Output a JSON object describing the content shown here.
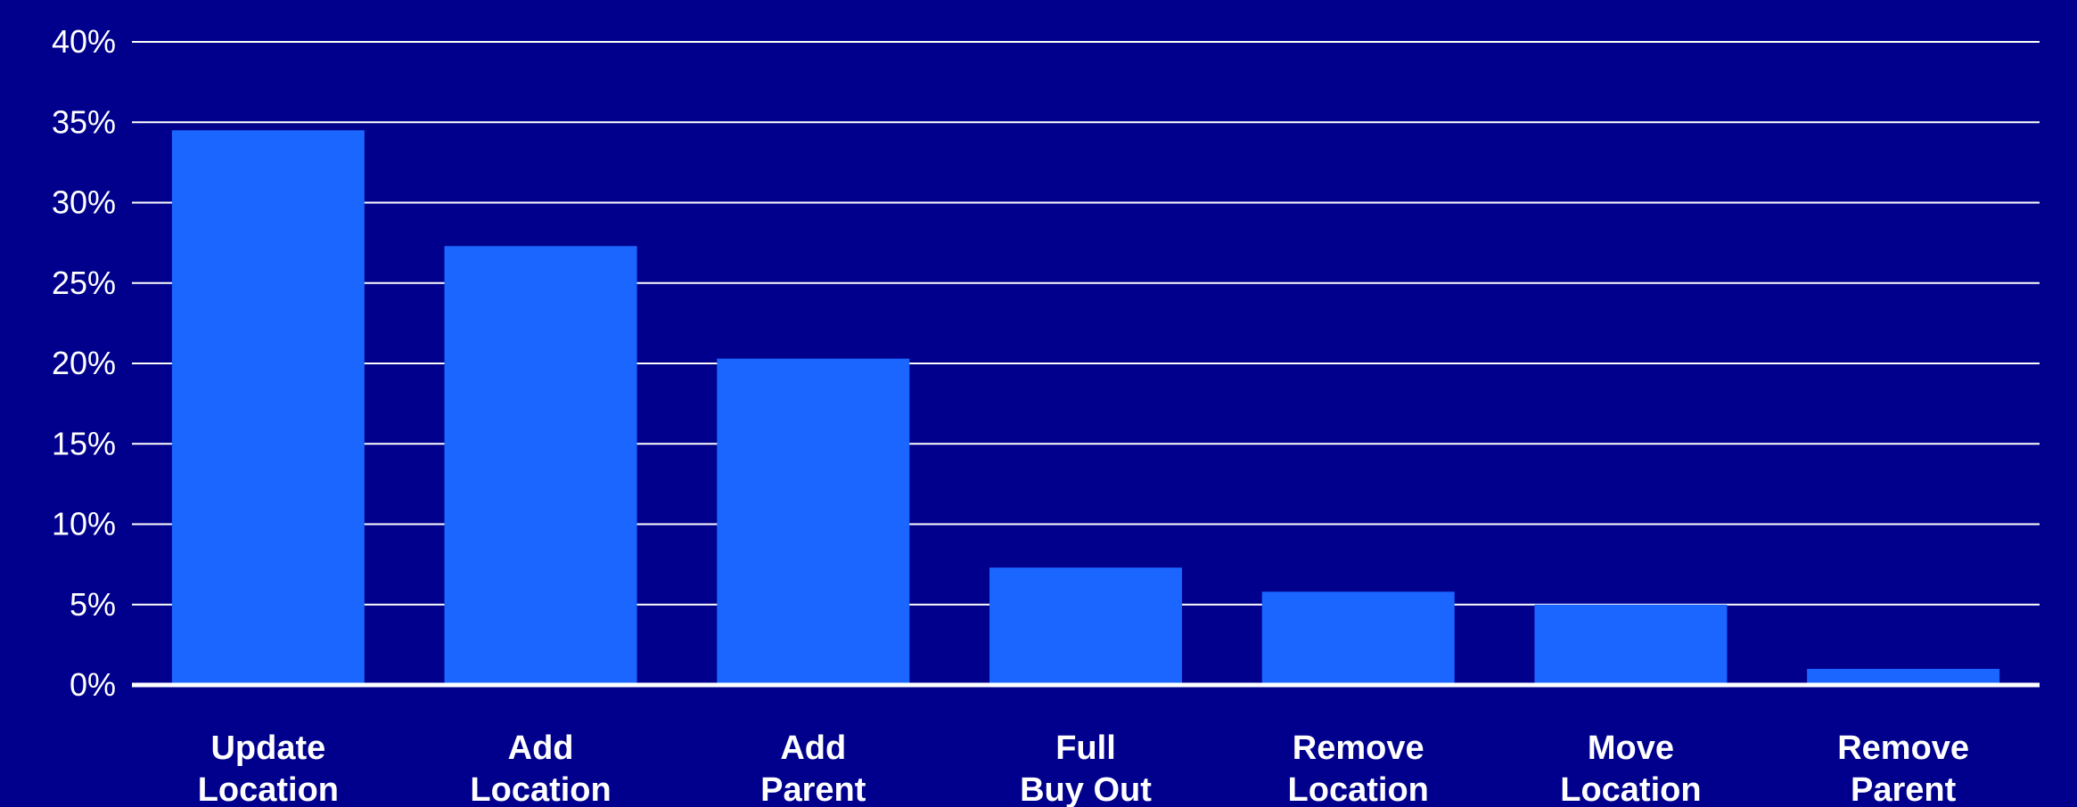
{
  "colors": {
    "background": "#00008c",
    "bar": "#1b66ff",
    "gridline": "#ffffff",
    "text": "#ffffff"
  },
  "chart_data": {
    "type": "bar",
    "title": "",
    "xlabel": "",
    "ylabel": "",
    "categories": [
      [
        "Update",
        "Location"
      ],
      [
        "Add",
        "Location"
      ],
      [
        "Add",
        "Parent"
      ],
      [
        "Full",
        "Buy Out"
      ],
      [
        "Remove",
        "Location"
      ],
      [
        "Move",
        "Location"
      ],
      [
        "Remove",
        "Parent"
      ]
    ],
    "values": [
      34.5,
      27.3,
      20.3,
      7.3,
      5.8,
      5.0,
      1.0
    ],
    "ylim": [
      0,
      40
    ],
    "yticks": [
      0,
      5,
      10,
      15,
      20,
      25,
      30,
      35,
      40
    ],
    "ytick_labels": [
      "0%",
      "5%",
      "10%",
      "15%",
      "20%",
      "25%",
      "30%",
      "35%",
      "40%"
    ],
    "grid": true,
    "legend": "none"
  }
}
